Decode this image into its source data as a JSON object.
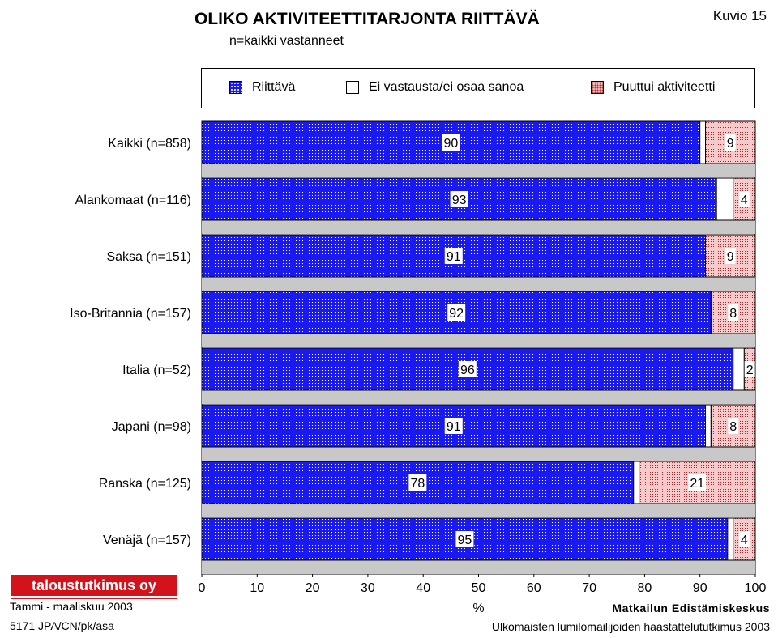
{
  "header": {
    "title": "OLIKO AKTIVITEETTITARJONTA RIITTÄVÄ",
    "subtitle": "n=kaikki vastanneet",
    "figure_label": "Kuvio 15"
  },
  "footer": {
    "logo_text": "taloustutkimus oy",
    "period": "Tammi - maaliskuu 2003",
    "code": "5171 JPA/CN/pk/asa",
    "organization": "Matkailun Edistämiskeskus",
    "study": "Ulkomaisten lumilomailijoiden haastattelututkimus 2003"
  },
  "colors": {
    "riittava": "#1a1aee",
    "ei_vastausta": "#ffffff",
    "puuttui": "#f4c4c4",
    "logo": "#d4121b"
  },
  "chart_data": {
    "type": "bar",
    "orientation": "horizontal",
    "stacked": true,
    "title": "OLIKO AKTIVITEETTITARJONTA RIITTÄVÄ",
    "subtitle": "n=kaikki vastanneet",
    "xlabel": "%",
    "xlim": [
      0,
      100
    ],
    "xticks": [
      0,
      10,
      20,
      30,
      40,
      50,
      60,
      70,
      80,
      90,
      100
    ],
    "legend_position": "top",
    "categories": [
      "Kaikki (n=858)",
      "Alankomaat (n=116)",
      "Saksa (n=151)",
      "Iso-Britannia (n=157)",
      "Italia (n=52)",
      "Japani (n=98)",
      "Ranska (n=125)",
      "Venäjä (n=157)"
    ],
    "series": [
      {
        "name": "Riittävä",
        "values": [
          90,
          93,
          91,
          92,
          96,
          91,
          78,
          95
        ],
        "labels": [
          "90",
          "93",
          "91",
          "92",
          "96",
          "91",
          "78",
          "95"
        ]
      },
      {
        "name": "Ei vastausta/ei osaa sanoa",
        "values": [
          1,
          3,
          0,
          0,
          2,
          1,
          1,
          1
        ]
      },
      {
        "name": "Puuttui aktiviteetti",
        "values": [
          9,
          4,
          9,
          8,
          2,
          8,
          21,
          4
        ],
        "labels": [
          "9",
          "4",
          "9",
          "8",
          "2",
          "8",
          "21",
          "4"
        ]
      }
    ]
  }
}
